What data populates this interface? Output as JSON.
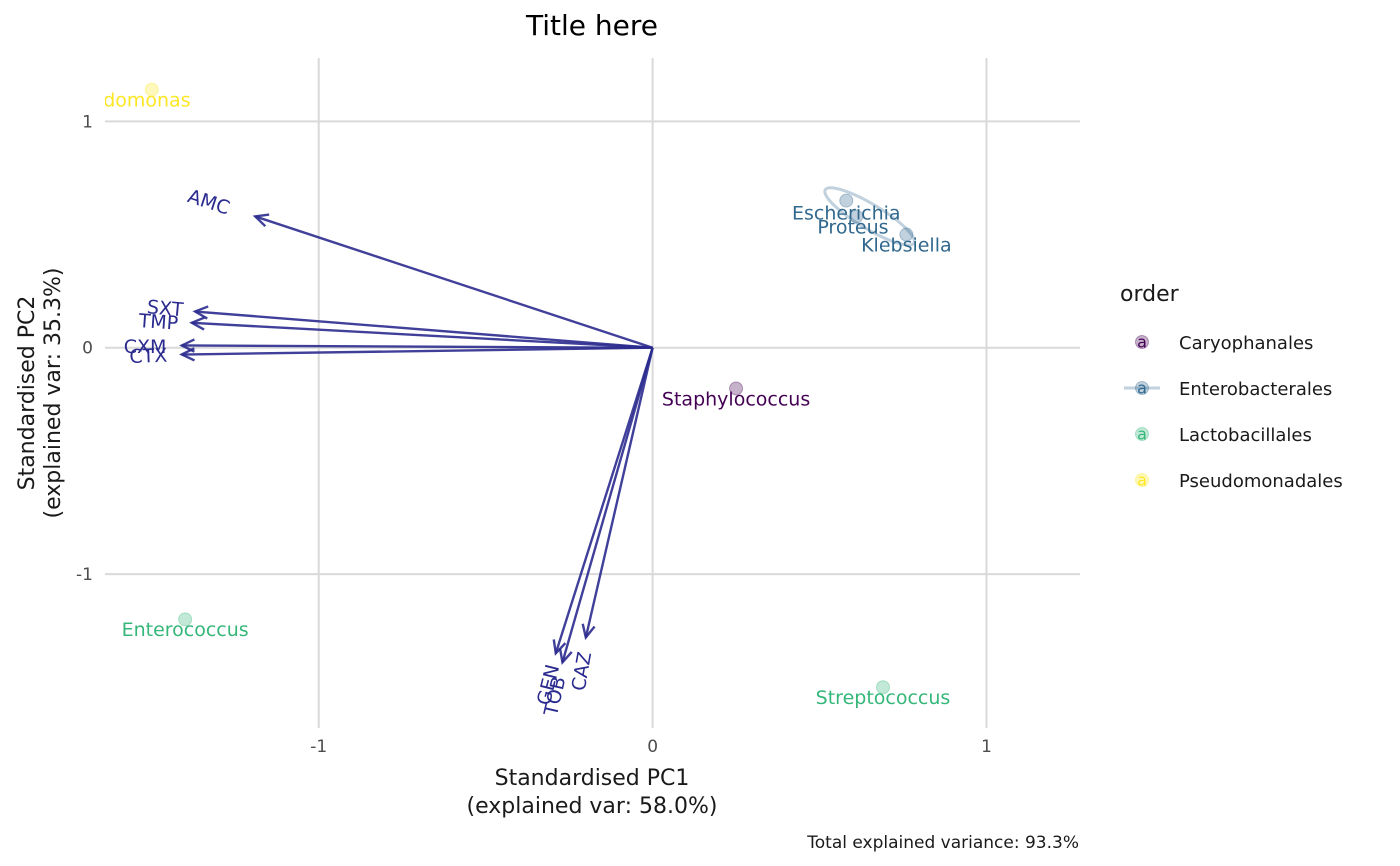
{
  "chart_data": {
    "type": "scatter",
    "title": "Title here",
    "xlabel": [
      "Standardised PC1",
      "(explained var: 58.0%)"
    ],
    "ylabel": [
      "Standardised PC2",
      "(explained var: 35.3%)"
    ],
    "caption": "Total explained variance: 93.3%",
    "xlim": [
      -1.64,
      1.28
    ],
    "ylim": [
      -1.68,
      1.28
    ],
    "x_ticks": [
      {
        "value": -1,
        "label": "-1"
      },
      {
        "value": 0,
        "label": "0"
      },
      {
        "value": 1,
        "label": "1"
      }
    ],
    "y_ticks": [
      {
        "value": 1,
        "label": "1"
      },
      {
        "value": 0,
        "label": "0"
      },
      {
        "value": -1,
        "label": "-1"
      }
    ],
    "grid": true,
    "arrow_color": "#2b2b8f",
    "arrows": [
      {
        "name": "AMC",
        "x": -1.19,
        "y": 0.58,
        "label_x": -1.33,
        "label_y": 0.64,
        "angle": 18
      },
      {
        "name": "SXT",
        "x": -1.37,
        "y": 0.16,
        "label_x": -1.46,
        "label_y": 0.17,
        "angle": 5
      },
      {
        "name": "TMP",
        "x": -1.38,
        "y": 0.11,
        "label_x": -1.48,
        "label_y": 0.11,
        "angle": 4
      },
      {
        "name": "CXM",
        "x": -1.41,
        "y": 0.01,
        "label_x": -1.52,
        "label_y": 0.0,
        "angle": 0
      },
      {
        "name": "CTX",
        "x": -1.41,
        "y": -0.03,
        "label_x": -1.51,
        "label_y": -0.04,
        "angle": -2
      },
      {
        "name": "GEN",
        "x": -0.29,
        "y": -1.35,
        "label_x": -0.31,
        "label_y": -1.49,
        "angle": -76
      },
      {
        "name": "TOB",
        "x": -0.27,
        "y": -1.39,
        "label_x": -0.29,
        "label_y": -1.54,
        "angle": -77
      },
      {
        "name": "CAZ",
        "x": -0.2,
        "y": -1.28,
        "label_x": -0.21,
        "label_y": -1.43,
        "angle": -80
      }
    ],
    "points": [
      {
        "name": "Pseudomonas",
        "display": "eudomonas",
        "order": "Pseudomonadales",
        "x": -1.5,
        "y": 1.14,
        "label_x": -1.55,
        "label_y": 1.09
      },
      {
        "name": "Escherichia",
        "order": "Enterobacterales",
        "x": 0.58,
        "y": 0.65,
        "label_x": 0.58,
        "label_y": 0.59
      },
      {
        "name": "Proteus",
        "order": "Enterobacterales",
        "x": 0.61,
        "y": 0.58,
        "label_x": 0.6,
        "label_y": 0.53
      },
      {
        "name": "Klebsiella",
        "order": "Enterobacterales",
        "x": 0.76,
        "y": 0.5,
        "label_x": 0.76,
        "label_y": 0.45
      },
      {
        "name": "Staphylococcus",
        "order": "Caryophanales",
        "x": 0.25,
        "y": -0.18,
        "label_x": 0.25,
        "label_y": -0.23
      },
      {
        "name": "Enterococcus",
        "order": "Lactobacillales",
        "x": -1.4,
        "y": -1.2,
        "label_x": -1.4,
        "label_y": -1.25
      },
      {
        "name": "Streptococcus",
        "order": "Lactobacillales",
        "x": 0.69,
        "y": -1.5,
        "label_x": 0.69,
        "label_y": -1.55
      }
    ],
    "ellipses": [
      {
        "order": "Enterobacterales",
        "cx": 0.65,
        "cy": 0.58,
        "rx": 0.155,
        "ry": 0.018,
        "angle_deg": -31
      }
    ],
    "legend": {
      "title": "order",
      "position": "right",
      "key_letter": "a",
      "entries": [
        {
          "label": "Caryophanales",
          "color": "#440154",
          "has_ellipse": false
        },
        {
          "label": "Enterobacterales",
          "color": "#31688e",
          "has_ellipse": true
        },
        {
          "label": "Lactobacillales",
          "color": "#35b779",
          "has_ellipse": false
        },
        {
          "label": "Pseudomonadales",
          "color": "#fde725",
          "has_ellipse": false
        }
      ]
    }
  }
}
